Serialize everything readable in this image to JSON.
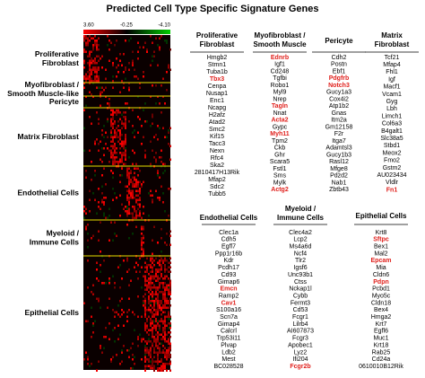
{
  "title": "Predicted Cell Type Specific Signature Genes",
  "heatmap": {
    "scale_labels": [
      "3.60",
      "-0.25",
      "-4.10"
    ],
    "groups": [
      [
        "Proliferative",
        "Fibroblast"
      ],
      [
        "Myofibroblast /",
        "Smooth Muscle-like"
      ],
      [
        "Pericyte"
      ],
      [
        "Matrix Fibroblast"
      ],
      [
        "Endothelial Cells"
      ],
      [
        "Myeloid /",
        "Immune Cells"
      ],
      [
        "Epithelial Cells"
      ]
    ]
  },
  "panels": [
    {
      "title": [
        "Proliferative",
        "Fibroblast"
      ],
      "genes": [
        "Hmgb2",
        "Stmn1",
        "Tuba1b",
        {
          "name": "Tbx3",
          "color": "#e0201c"
        },
        "Cenpa",
        "Nusap1",
        "Enc1",
        "Ncapg",
        "H2afz",
        "Atad2",
        "Smc2",
        "Kif15",
        "Tacc3",
        "Nexn",
        "Rfc4",
        "Ska2",
        "2810417H13Rik",
        "Mfap2",
        "Sdc2",
        "Tubb5"
      ]
    },
    {
      "title": [
        "Myofibroblast /",
        "Smooth Muscle"
      ],
      "genes": [
        {
          "name": "Ednrb",
          "color": "#e0201c"
        },
        "Igf1",
        "Cd248",
        "Tgfbi",
        "Robo1",
        "Myl9",
        "Nrep",
        {
          "name": "Tagln",
          "color": "#e0201c"
        },
        "Nnat",
        {
          "name": "Acta2",
          "color": "#e0201c"
        },
        "Gypc",
        {
          "name": "Myh11",
          "color": "#e0201c"
        },
        "Tpm2",
        "Ckb",
        "Ghr",
        "Scara5",
        "Fstl1",
        "Sms",
        "Mylk",
        {
          "name": "Actg2",
          "color": "#e0201c"
        }
      ]
    },
    {
      "title": [
        "Pericyte"
      ],
      "genes": [
        "Cdh2",
        "Postn",
        "Ebf1",
        {
          "name": "Pdgfrb",
          "color": "#e0201c"
        },
        {
          "name": "Notch3",
          "color": "#e0201c"
        },
        "Gucy1a3",
        "Cox4i2",
        "Atp1b2",
        "Gnas",
        "Itm2a",
        "Gm12158",
        "F2r",
        "Itga7",
        "Adamtsl3",
        "Gucy1b3",
        "Rasl12",
        "Mfge8",
        "Pdzd2",
        "Nab1",
        "Zbtb43"
      ]
    },
    {
      "title": [
        "Matrix",
        "Fibroblast"
      ],
      "genes": [
        "Tcf21",
        "Mfap4",
        "Fhl1",
        "Igf",
        "Macf1",
        "Vcam1",
        "Gyg",
        "Lbh",
        "Limch1",
        "Col6a3",
        "B4galt1",
        "Slc38a5",
        "Stbd1",
        "Meox2",
        "Fmo2",
        "Gstm2",
        "AU023434",
        "Vldlr",
        {
          "name": "Fn1",
          "color": "#e0201c"
        }
      ]
    },
    {
      "title": [
        "Endothelial Cells"
      ],
      "genes": [
        "Clec1a",
        "Cdh5",
        "Egfl7",
        "Ppp1r16b",
        "Kdr",
        "Pcdh17",
        "Cd93",
        "Gimap6",
        {
          "name": "Emcn",
          "color": "#e0201c"
        },
        "Ramp2",
        {
          "name": "Cav1",
          "color": "#e0201c"
        },
        "S100a16",
        "Scn7a",
        "Gimap4",
        "Calcrl",
        "Trp53i11",
        "Plvap",
        "Ldb2",
        "Mest",
        "BC028528"
      ]
    },
    {
      "title": [
        "Myeloid /",
        "Immune Cells"
      ],
      "genes": [
        "Clec4a2",
        "Lcp2",
        "Ms4a6d",
        "Ncf4",
        "Tlr2",
        "Igsf6",
        "Unc93b1",
        "Ctss",
        "Nckap1l",
        "Cybb",
        "Fermt3",
        "Cd53",
        "Fcgr1",
        "Lilrb4",
        "AI607873",
        "Fcgr3",
        "Apobec1",
        "Lyz2",
        "Ifi204",
        {
          "name": "Fcgr2b",
          "color": "#e0201c"
        }
      ]
    },
    {
      "title": [
        "Epithelial Cells"
      ],
      "genes": [
        "Krt8",
        {
          "name": "Sftpc",
          "color": "#e0201c"
        },
        "Bex1",
        "Mal2",
        {
          "name": "Epcam",
          "color": "#e0201c"
        },
        "Mia",
        "Cldn6",
        {
          "name": "Pdpn",
          "color": "#e0201c"
        },
        "Pcbd1",
        "Myo5c",
        "Cldn18",
        "Bex4",
        "Hmga2",
        "Krt7",
        "Egfl6",
        "Muc1",
        "Krt18",
        "Rab25",
        "Cd24a",
        "0610010B12Rik"
      ]
    }
  ]
}
